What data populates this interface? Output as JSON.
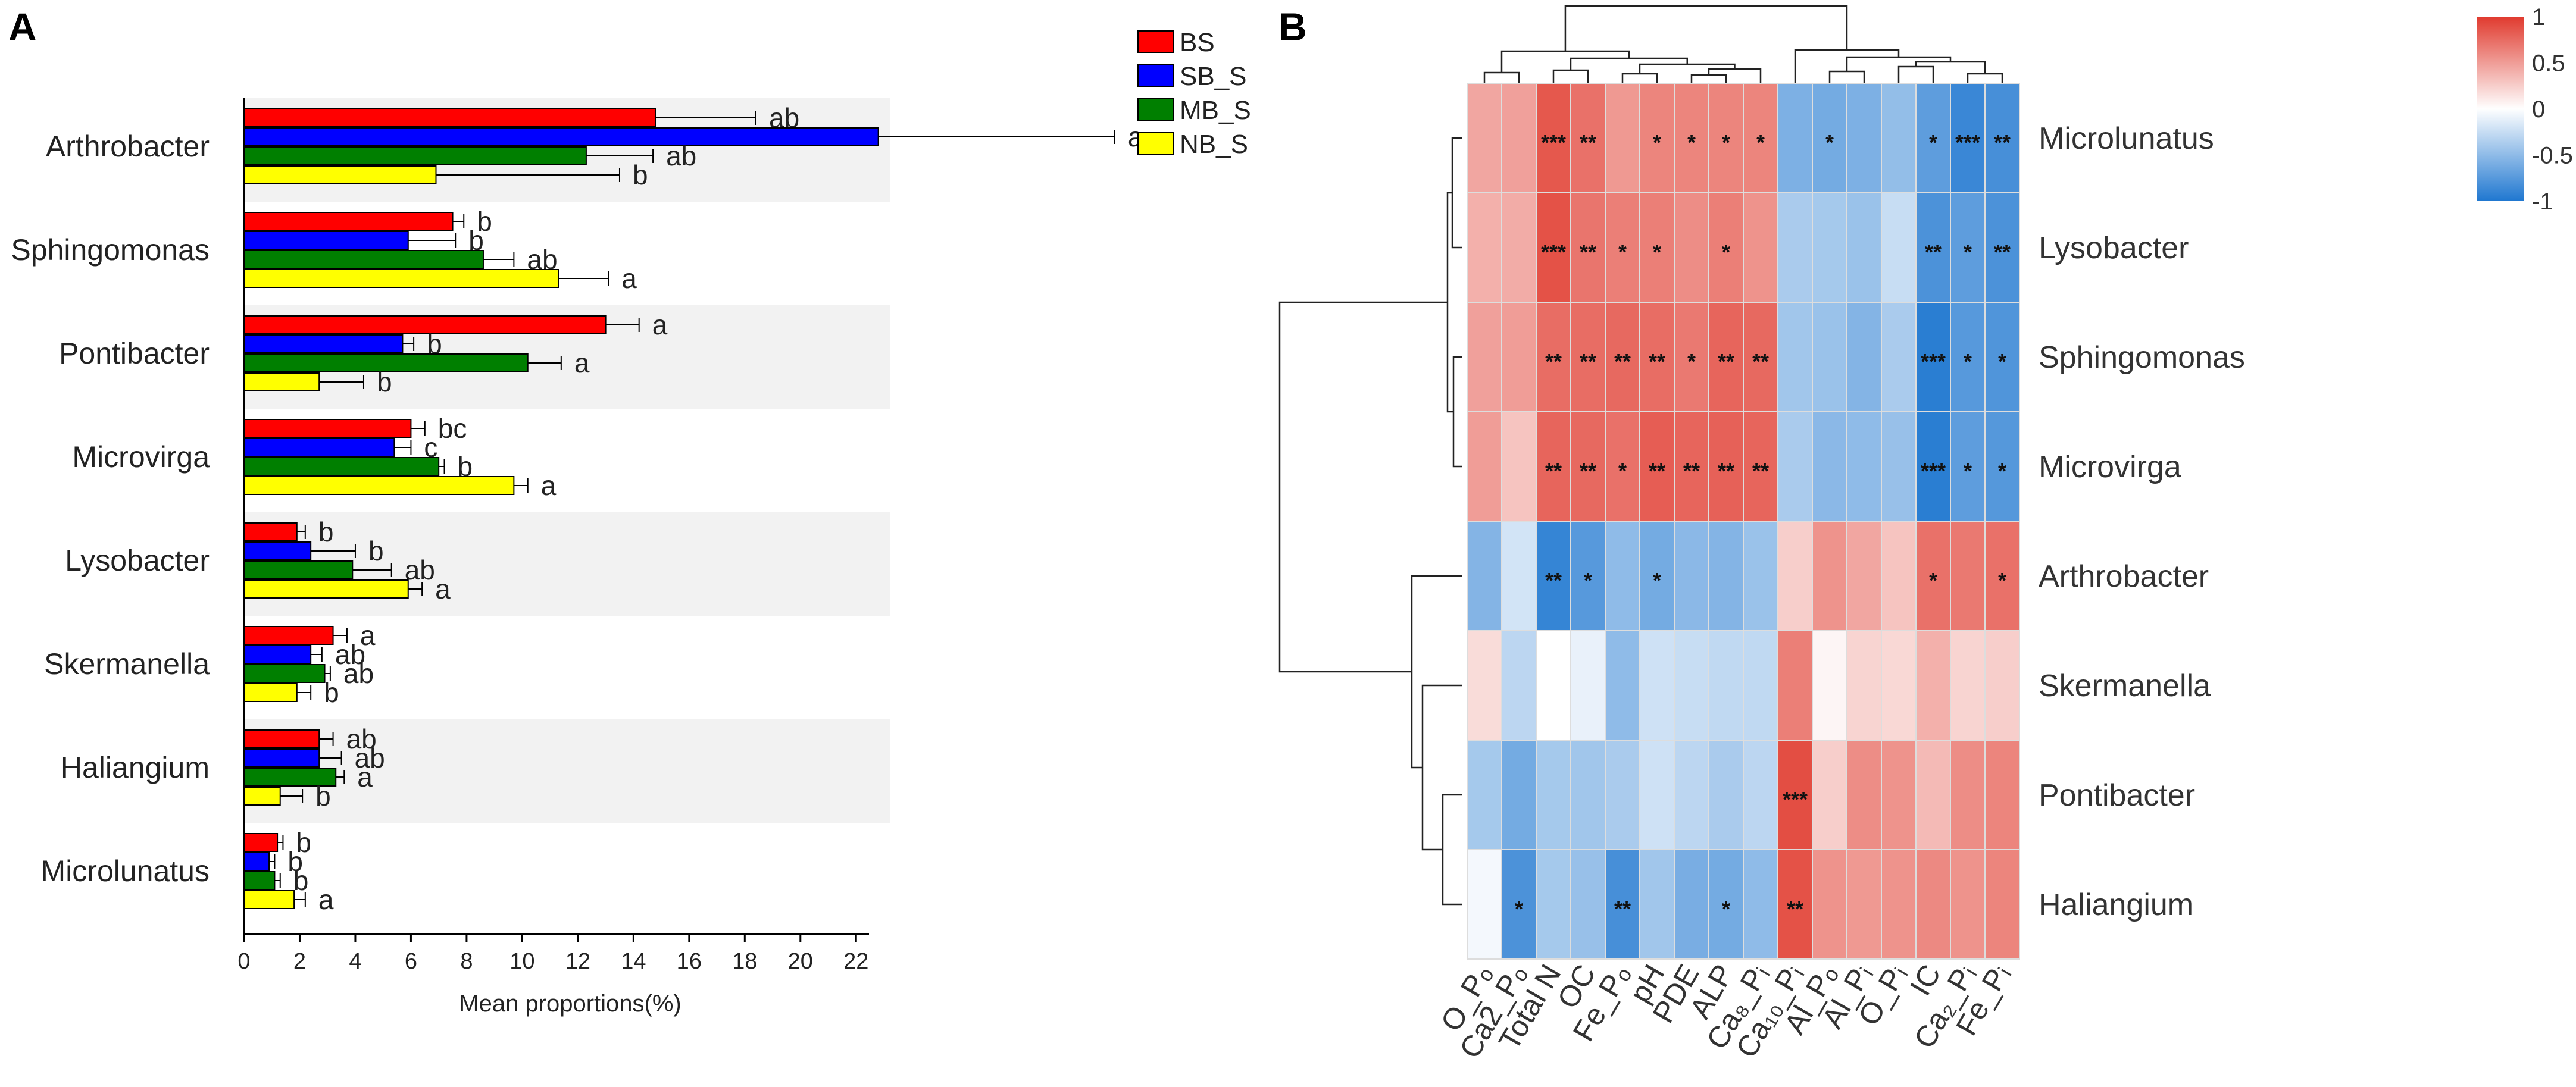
{
  "panel_a_letter": "A",
  "panel_b_letter": "B",
  "chart_data": [
    {
      "type": "bar",
      "orientation": "horizontal",
      "title": "",
      "xlabel": "Mean proportions(%)",
      "ylabel": "",
      "xlim": [
        0,
        23.5
      ],
      "xticks": [
        "0",
        "2",
        "4",
        "6",
        "8",
        "10",
        "12",
        "14",
        "16",
        "18",
        "20",
        "22"
      ],
      "categories": [
        "Arthrobacter",
        "Sphingomonas",
        "Pontibacter",
        "Microvirga",
        "Lysobacter",
        "Skermanella",
        "Haliangium",
        "Microlunatus"
      ],
      "series": [
        {
          "name": "BS",
          "color": "#ff0000",
          "values": [
            14.8,
            7.5,
            13.0,
            6.0,
            1.9,
            3.2,
            2.7,
            1.2
          ],
          "errors": [
            3.6,
            0.4,
            1.2,
            0.5,
            0.3,
            0.5,
            0.5,
            0.2
          ],
          "letters": [
            "ab",
            "b",
            "a",
            "bc",
            "b",
            "a",
            "ab",
            "b"
          ]
        },
        {
          "name": "SB_S",
          "color": "#0000ff",
          "values": [
            22.8,
            5.9,
            5.7,
            5.4,
            2.4,
            2.4,
            2.7,
            0.9
          ],
          "errors": [
            8.5,
            1.7,
            0.4,
            0.6,
            1.6,
            0.4,
            0.8,
            0.2
          ],
          "letters": [
            "a",
            "b",
            "b",
            "c",
            "b",
            "ab",
            "ab",
            "b"
          ]
        },
        {
          "name": "MB_S",
          "color": "#007f00",
          "values": [
            12.3,
            8.6,
            10.2,
            7.0,
            3.9,
            2.9,
            3.3,
            1.1
          ],
          "errors": [
            2.4,
            1.1,
            1.2,
            0.2,
            1.4,
            0.2,
            0.3,
            0.2
          ],
          "letters": [
            "ab",
            "ab",
            "a",
            "b",
            "ab",
            "ab",
            "a",
            "b"
          ]
        },
        {
          "name": "NB_S",
          "color": "#ffff00",
          "values": [
            6.9,
            11.3,
            2.7,
            9.7,
            5.9,
            1.9,
            1.3,
            1.8
          ],
          "errors": [
            6.6,
            1.8,
            1.6,
            0.5,
            0.5,
            0.5,
            0.8,
            0.4
          ],
          "letters": [
            "b",
            "a",
            "b",
            "a",
            "a",
            "b",
            "b",
            "a"
          ]
        }
      ]
    },
    {
      "type": "heatmap",
      "title": "",
      "rows": [
        "Microlunatus",
        "Lysobacter",
        "Sphingomonas",
        "Microvirga",
        "Arthrobacter",
        "Skermanella",
        "Pontibacter",
        "Haliangium"
      ],
      "columns": [
        "O_Pₒ",
        "Ca2_Pₒ",
        "Total N",
        "OC",
        "Fe_Pₒ",
        "pH",
        "PDE",
        "ALP",
        "Ca₈_Pᵢ",
        "Ca₁₀_Pᵢ",
        "Al_Pₒ",
        "Al_Pᵢ",
        "O_Pᵢ",
        "IC",
        "Ca₂_Pᵢ",
        "Fe_Pᵢ"
      ],
      "values": [
        [
          0.45,
          0.48,
          0.85,
          0.72,
          0.52,
          0.62,
          0.62,
          0.62,
          0.62,
          -0.58,
          -0.62,
          -0.58,
          -0.48,
          -0.72,
          -0.88,
          -0.82
        ],
        [
          0.4,
          0.42,
          0.88,
          0.7,
          0.65,
          0.65,
          0.58,
          0.65,
          0.55,
          -0.38,
          -0.4,
          -0.45,
          -0.25,
          -0.8,
          -0.72,
          -0.8
        ],
        [
          0.48,
          0.5,
          0.74,
          0.74,
          0.76,
          0.74,
          0.68,
          0.78,
          0.76,
          -0.42,
          -0.45,
          -0.55,
          -0.38,
          -0.95,
          -0.75,
          -0.78
        ],
        [
          0.5,
          0.3,
          0.78,
          0.76,
          0.72,
          0.82,
          0.78,
          0.8,
          0.78,
          -0.38,
          -0.52,
          -0.5,
          -0.46,
          -0.95,
          -0.72,
          -0.76
        ],
        [
          -0.55,
          -0.2,
          -0.9,
          -0.75,
          -0.5,
          -0.62,
          -0.52,
          -0.55,
          -0.45,
          0.25,
          0.55,
          0.45,
          0.3,
          0.72,
          0.68,
          0.72
        ],
        [
          0.18,
          -0.3,
          0.0,
          -0.1,
          -0.5,
          -0.22,
          -0.25,
          -0.28,
          -0.28,
          0.65,
          0.05,
          0.22,
          0.2,
          0.4,
          0.22,
          0.25
        ],
        [
          -0.4,
          -0.62,
          -0.4,
          -0.42,
          -0.38,
          -0.22,
          -0.3,
          -0.38,
          -0.3,
          0.9,
          0.25,
          0.58,
          0.55,
          0.35,
          0.58,
          0.62
        ],
        [
          -0.05,
          -0.8,
          -0.4,
          -0.46,
          -0.82,
          -0.42,
          -0.6,
          -0.62,
          -0.5,
          0.88,
          0.55,
          0.52,
          0.55,
          0.6,
          0.55,
          0.62
        ]
      ],
      "significance": [
        [
          "",
          "",
          "***",
          "**",
          "",
          "*",
          "*",
          "*",
          "*",
          "",
          "*",
          "",
          "",
          "*",
          "***",
          "**"
        ],
        [
          "",
          "",
          "***",
          "**",
          "*",
          "*",
          "",
          "*",
          "",
          "",
          "",
          "",
          "",
          "**",
          "*",
          "**"
        ],
        [
          "",
          "",
          "**",
          "**",
          "**",
          "**",
          "*",
          "**",
          "**",
          "",
          "",
          "",
          "",
          "***",
          "*",
          "*"
        ],
        [
          "",
          "",
          "**",
          "**",
          "*",
          "**",
          "**",
          "**",
          "**",
          "",
          "",
          "",
          "",
          "***",
          "*",
          "*"
        ],
        [
          "",
          "",
          "**",
          "*",
          "",
          "*",
          "",
          "",
          "",
          "",
          "",
          "",
          "",
          "*",
          "",
          "*"
        ],
        [
          "",
          "",
          "",
          "",
          "",
          "",
          "",
          "",
          "",
          "",
          "",
          "",
          "",
          "",
          "",
          ""
        ],
        [
          "",
          "",
          "",
          "",
          "",
          "",
          "",
          "",
          "",
          "***",
          "",
          "",
          "",
          "",
          "",
          ""
        ],
        [
          "",
          "*",
          "",
          "",
          "**",
          "",
          "",
          "*",
          "",
          "**",
          "",
          "",
          "",
          "",
          "",
          ""
        ]
      ],
      "colorbar": {
        "range": [
          -1,
          1
        ],
        "ticks": [
          "1",
          "0.5",
          "0",
          "-0.5",
          "-1"
        ],
        "low_color": "#1f77d0",
        "mid_color": "#ffffff",
        "high_color": "#e03a2e"
      },
      "col_dendrogram": true,
      "row_dendrogram": true
    }
  ]
}
